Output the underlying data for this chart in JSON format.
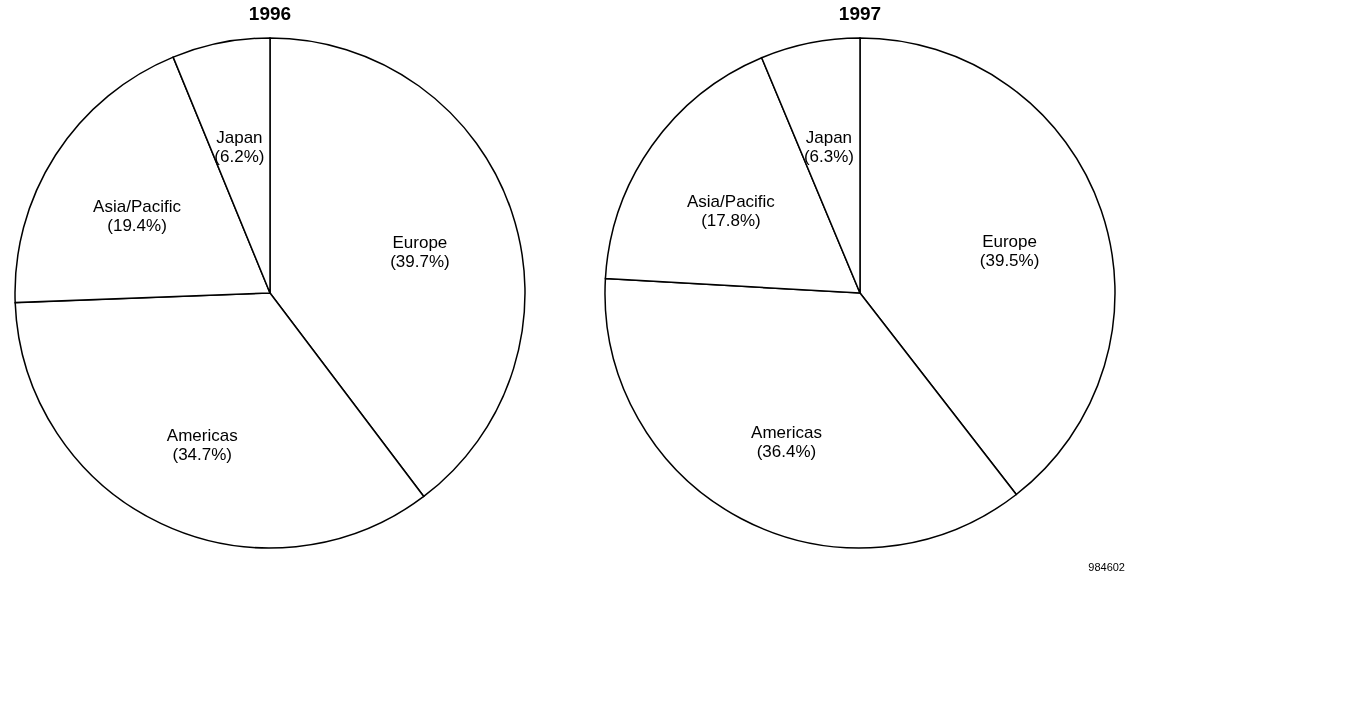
{
  "chart_data": [
    {
      "type": "pie",
      "title": "1996",
      "categories": [
        "Europe",
        "Americas",
        "Asia/Pacific",
        "Japan"
      ],
      "values": [
        39.7,
        34.7,
        19.4,
        6.2
      ],
      "colors": [
        "#ffffff",
        "#ffffff",
        "#ffffff",
        "#ffffff"
      ],
      "value_labels": [
        "(39.7%)",
        "(34.7%)",
        "(19.4%)",
        "(6.2%)"
      ],
      "legend": false
    },
    {
      "type": "pie",
      "title": "1997",
      "categories": [
        "Europe",
        "Americas",
        "Asia/Pacific",
        "Japan"
      ],
      "values": [
        39.5,
        36.4,
        17.8,
        6.3
      ],
      "colors": [
        "#ffffff",
        "#ffffff",
        "#ffffff",
        "#ffffff"
      ],
      "value_labels": [
        "(39.5%)",
        "(36.4%)",
        "(17.8%)",
        "(6.3%)"
      ],
      "legend": false,
      "annotations": [
        "984602"
      ]
    }
  ]
}
